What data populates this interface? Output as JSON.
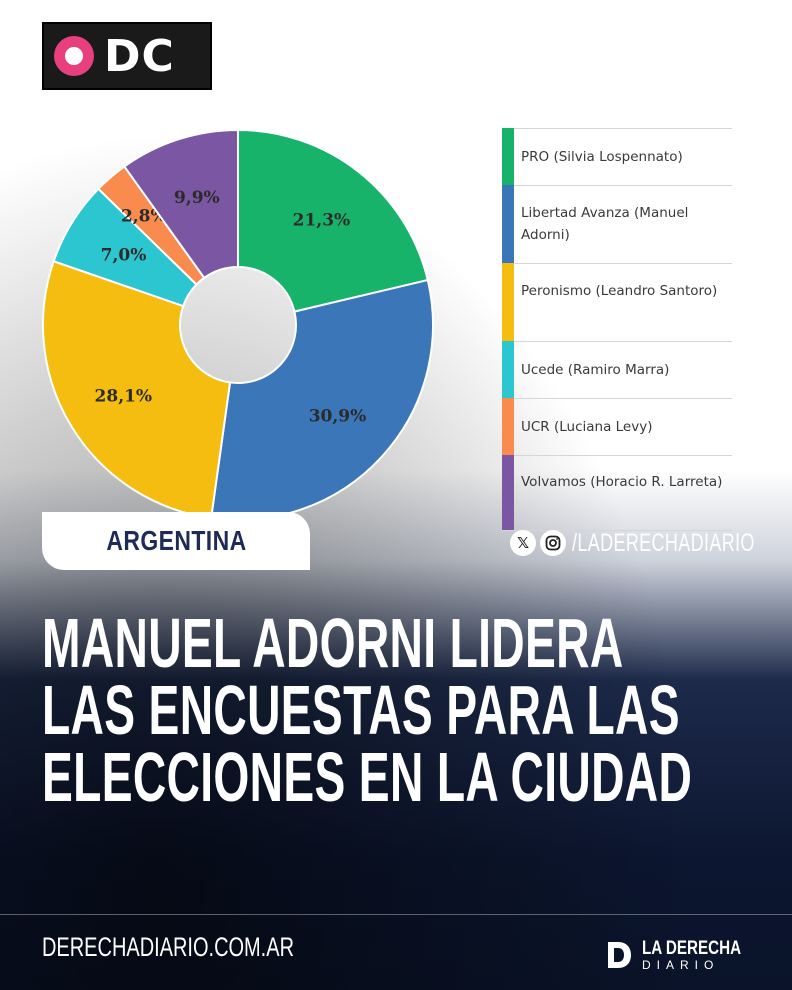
{
  "logo": {
    "text": "DC"
  },
  "chart_data": {
    "type": "pie",
    "donut": true,
    "categories": [
      "PRO (Silvia Lospennato)",
      "Libertad Avanza (Manuel Adorni)",
      "Peronismo (Leandro Santoro)",
      "Ucede (Ramiro Marra)",
      "UCR (Luciana Levy)",
      "Volvamos (Horacio R. Larreta)"
    ],
    "values": [
      21.3,
      30.9,
      28.1,
      7.0,
      2.8,
      9.9
    ],
    "value_labels": [
      "21,3%",
      "30,9%",
      "28,1%",
      "7,0%",
      "2,8%",
      "9,9%"
    ],
    "colors": [
      "#18b36b",
      "#3a76b8",
      "#f5bd0f",
      "#2cc6d0",
      "#f98b4f",
      "#7b57a3"
    ],
    "legend_position": "right"
  },
  "legend": {
    "items": [
      {
        "label": "PRO (Silvia Lospennato)",
        "color": "#18b36b"
      },
      {
        "label": "Libertad Avanza (Manuel Adorni)",
        "color": "#3a76b8"
      },
      {
        "label": "Peronismo (Leandro Santoro)",
        "color": "#f5bd0f"
      },
      {
        "label": "Ucede (Ramiro Marra)",
        "color": "#2cc6d0"
      },
      {
        "label": "UCR (Luciana Levy)",
        "color": "#f98b4f"
      },
      {
        "label": "Volvamos (Horacio R. Larreta)",
        "color": "#7b57a3"
      }
    ]
  },
  "badge": {
    "label": "ARGENTINA"
  },
  "social": {
    "handle": "/LADERECHADIARIO",
    "icons": [
      "x-icon",
      "instagram-icon"
    ]
  },
  "headline": {
    "lines": [
      "MANUEL ADORNI LIDERA",
      "LAS ENCUESTAS PARA LAS",
      "ELECCIONES EN LA CIUDAD"
    ]
  },
  "footer": {
    "url": "DERECHADIARIO.COM.AR",
    "brand_line1": "LA DERECHA",
    "brand_line2": "DIARIO"
  }
}
